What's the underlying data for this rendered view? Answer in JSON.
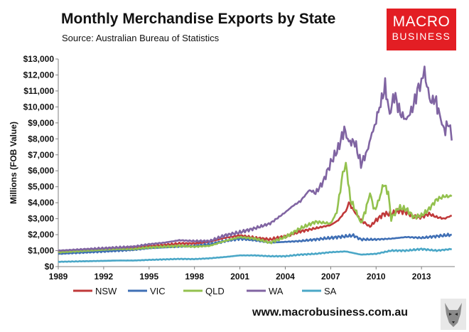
{
  "header": {
    "title": "Monthly Merchandise Exports by State",
    "subtitle": "Source: Australian Bureau of Statistics"
  },
  "logo": {
    "line1": "MACRO",
    "line2": "BUSINESS"
  },
  "footer": {
    "url": "www.macrobusiness.com.au",
    "mascot_icon": "wolf-icon"
  },
  "chart_data": {
    "type": "line",
    "title": "Monthly Merchandise Exports by State",
    "ylabel": "Millions (FOB Value)",
    "xlabel": "",
    "xlim": [
      1989,
      2015.2
    ],
    "ylim": [
      0,
      13000
    ],
    "x_ticks": [
      "1989",
      "1992",
      "1995",
      "1998",
      "2001",
      "2004",
      "2007",
      "2010",
      "2013"
    ],
    "y_ticks": [
      "$0",
      "$1,000",
      "$2,000",
      "$3,000",
      "$4,000",
      "$5,000",
      "$6,000",
      "$7,000",
      "$8,000",
      "$9,000",
      "$10,000",
      "$11,000",
      "$12,000",
      "$13,000"
    ],
    "grid": false,
    "legend": "bottom",
    "series": [
      {
        "name": "NSW",
        "color": "#c0393a",
        "points": [
          [
            1989,
            900
          ],
          [
            1990,
            1000
          ],
          [
            1991,
            1050
          ],
          [
            1992,
            1100
          ],
          [
            1993,
            1150
          ],
          [
            1994,
            1200
          ],
          [
            1995,
            1300
          ],
          [
            1996,
            1350
          ],
          [
            1997,
            1450
          ],
          [
            1998,
            1450
          ],
          [
            1999,
            1550
          ],
          [
            2000,
            1800
          ],
          [
            2001,
            1950
          ],
          [
            2002,
            1800
          ],
          [
            2003,
            1700
          ],
          [
            2004,
            1900
          ],
          [
            2005,
            2200
          ],
          [
            2006,
            2400
          ],
          [
            2007,
            2600
          ],
          [
            2007.5,
            2900
          ],
          [
            2008,
            3500
          ],
          [
            2008.2,
            4000
          ],
          [
            2008.6,
            3400
          ],
          [
            2009,
            2900
          ],
          [
            2009.6,
            2500
          ],
          [
            2010,
            2900
          ],
          [
            2010.5,
            3300
          ],
          [
            2011,
            3300
          ],
          [
            2011.5,
            3500
          ],
          [
            2012,
            3400
          ],
          [
            2012.5,
            3100
          ],
          [
            2013,
            3100
          ],
          [
            2013.5,
            3300
          ],
          [
            2014,
            3100
          ],
          [
            2014.5,
            3000
          ],
          [
            2015,
            3200
          ]
        ]
      },
      {
        "name": "VIC",
        "color": "#3f6fb5",
        "points": [
          [
            1989,
            800
          ],
          [
            1990,
            850
          ],
          [
            1991,
            900
          ],
          [
            1992,
            950
          ],
          [
            1993,
            1000
          ],
          [
            1994,
            1050
          ],
          [
            1995,
            1150
          ],
          [
            1996,
            1200
          ],
          [
            1997,
            1250
          ],
          [
            1998,
            1300
          ],
          [
            1999,
            1400
          ],
          [
            2000,
            1600
          ],
          [
            2001,
            1750
          ],
          [
            2002,
            1650
          ],
          [
            2003,
            1500
          ],
          [
            2004,
            1550
          ],
          [
            2005,
            1600
          ],
          [
            2006,
            1700
          ],
          [
            2007,
            1800
          ],
          [
            2008,
            1900
          ],
          [
            2008.5,
            1950
          ],
          [
            2009,
            1700
          ],
          [
            2010,
            1700
          ],
          [
            2011,
            1750
          ],
          [
            2012,
            1850
          ],
          [
            2013,
            1800
          ],
          [
            2014,
            1900
          ],
          [
            2015,
            2000
          ]
        ]
      },
      {
        "name": "QLD",
        "color": "#93c14e",
        "points": [
          [
            1989,
            900
          ],
          [
            1990,
            950
          ],
          [
            1991,
            1000
          ],
          [
            1992,
            1050
          ],
          [
            1993,
            1100
          ],
          [
            1994,
            1100
          ],
          [
            1995,
            1200
          ],
          [
            1996,
            1250
          ],
          [
            1997,
            1300
          ],
          [
            1998,
            1250
          ],
          [
            1999,
            1300
          ],
          [
            2000,
            1600
          ],
          [
            2001,
            1850
          ],
          [
            2002,
            1750
          ],
          [
            2003,
            1500
          ],
          [
            2004,
            1850
          ],
          [
            2005,
            2400
          ],
          [
            2006,
            2800
          ],
          [
            2007,
            2700
          ],
          [
            2007.4,
            3400
          ],
          [
            2007.8,
            5800
          ],
          [
            2008.0,
            6500
          ],
          [
            2008.3,
            4200
          ],
          [
            2008.7,
            3400
          ],
          [
            2009,
            2700
          ],
          [
            2009.3,
            3500
          ],
          [
            2009.6,
            4600
          ],
          [
            2009.9,
            3500
          ],
          [
            2010.2,
            4200
          ],
          [
            2010.5,
            5200
          ],
          [
            2010.8,
            4600
          ],
          [
            2011,
            3000
          ],
          [
            2011.5,
            3700
          ],
          [
            2012,
            3600
          ],
          [
            2012.5,
            3100
          ],
          [
            2013,
            3200
          ],
          [
            2013.5,
            3600
          ],
          [
            2014,
            4200
          ],
          [
            2014.5,
            4400
          ],
          [
            2015,
            4400
          ]
        ]
      },
      {
        "name": "WA",
        "color": "#8064a2",
        "points": [
          [
            1989,
            1000
          ],
          [
            1990,
            1050
          ],
          [
            1991,
            1100
          ],
          [
            1992,
            1150
          ],
          [
            1993,
            1200
          ],
          [
            1994,
            1250
          ],
          [
            1995,
            1400
          ],
          [
            1996,
            1500
          ],
          [
            1997,
            1650
          ],
          [
            1998,
            1600
          ],
          [
            1999,
            1600
          ],
          [
            2000,
            1950
          ],
          [
            2001,
            2150
          ],
          [
            2002,
            2400
          ],
          [
            2003,
            2700
          ],
          [
            2004,
            3400
          ],
          [
            2004.5,
            3800
          ],
          [
            2005,
            4100
          ],
          [
            2005.6,
            4800
          ],
          [
            2006,
            4600
          ],
          [
            2006.5,
            5300
          ],
          [
            2007,
            6500
          ],
          [
            2007.5,
            7400
          ],
          [
            2007.9,
            8600
          ],
          [
            2008.2,
            7800
          ],
          [
            2008.6,
            7800
          ],
          [
            2009,
            6400
          ],
          [
            2009.4,
            7200
          ],
          [
            2009.8,
            8600
          ],
          [
            2010,
            9200
          ],
          [
            2010.3,
            10200
          ],
          [
            2010.6,
            11300
          ],
          [
            2010.9,
            9500
          ],
          [
            2011.2,
            10800
          ],
          [
            2011.6,
            9600
          ],
          [
            2012,
            9200
          ],
          [
            2012.4,
            9900
          ],
          [
            2012.8,
            11200
          ],
          [
            2013,
            11700
          ],
          [
            2013.2,
            12100
          ],
          [
            2013.6,
            10300
          ],
          [
            2013.9,
            10500
          ],
          [
            2014.2,
            9500
          ],
          [
            2014.5,
            8500
          ],
          [
            2014.8,
            9000
          ],
          [
            2015.0,
            7900
          ]
        ]
      },
      {
        "name": "SA",
        "color": "#4aa7c7",
        "points": [
          [
            1989,
            300
          ],
          [
            1990,
            320
          ],
          [
            1991,
            340
          ],
          [
            1992,
            360
          ],
          [
            1993,
            380
          ],
          [
            1994,
            380
          ],
          [
            1995,
            420
          ],
          [
            1996,
            450
          ],
          [
            1997,
            480
          ],
          [
            1998,
            470
          ],
          [
            1999,
            520
          ],
          [
            2000,
            600
          ],
          [
            2001,
            700
          ],
          [
            2002,
            700
          ],
          [
            2003,
            650
          ],
          [
            2004,
            650
          ],
          [
            2005,
            750
          ],
          [
            2006,
            800
          ],
          [
            2007,
            900
          ],
          [
            2008,
            950
          ],
          [
            2009,
            750
          ],
          [
            2010,
            800
          ],
          [
            2011,
            1000
          ],
          [
            2012,
            1000
          ],
          [
            2013,
            1100
          ],
          [
            2014,
            1000
          ],
          [
            2015,
            1100
          ]
        ]
      }
    ]
  }
}
